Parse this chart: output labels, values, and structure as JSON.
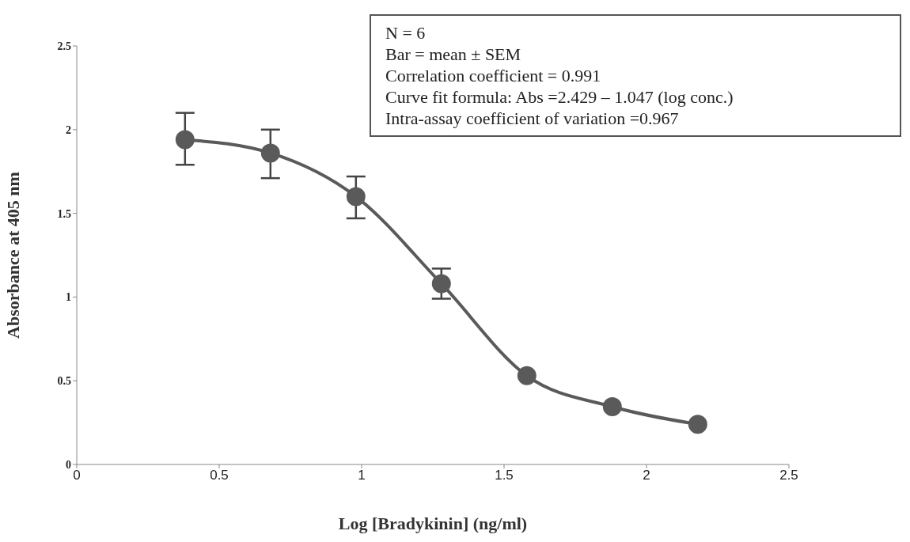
{
  "chart_data": {
    "type": "line",
    "xlabel": "Log [Bradykinin] (ng/ml)",
    "ylabel": "Absorbance at 405 nm",
    "x": [
      0.38,
      0.68,
      0.98,
      1.28,
      1.58,
      1.88,
      2.18
    ],
    "series": [
      {
        "color": "#5a5a5a",
        "values": [
          1.94,
          1.86,
          1.6,
          1.08,
          0.53,
          0.345,
          0.24
        ],
        "errors": [
          [
            1.79,
            2.1
          ],
          [
            1.71,
            2.0
          ],
          [
            1.47,
            1.72
          ],
          [
            0.99,
            1.17
          ],
          null,
          null,
          null
        ]
      }
    ],
    "xlim": [
      0,
      2.5
    ],
    "xticks": [
      0,
      0.5,
      1,
      1.5,
      2,
      2.5
    ],
    "ylim": [
      0,
      2.5
    ],
    "yticks": [
      0,
      0.5,
      1,
      1.5,
      2,
      2.5
    ],
    "grid": false,
    "legend": false,
    "marker": "circle",
    "line_style": "solid",
    "annotations": [
      "N = 6",
      "Bar = mean ± SEM",
      "Correlation coefficient = 0.991",
      "Curve fit formula: Abs =2.429 – 1.047 (log conc.)",
      "Intra-assay coefficient of variation =0.967"
    ]
  }
}
